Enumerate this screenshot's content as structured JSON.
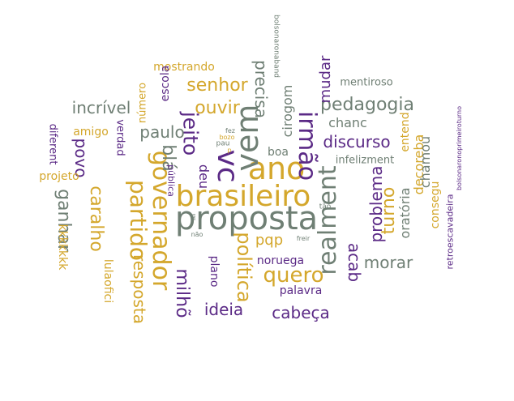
{
  "colors": {
    "gold": "#d4a72c",
    "purple": "#5b2a86",
    "gray": "#6f7f74"
  },
  "words": [
    {
      "text": "proposta",
      "c": "c3"
    },
    {
      "text": "brasileiro",
      "c": "c1"
    },
    {
      "text": "ano",
      "c": "c1"
    },
    {
      "text": "vem",
      "c": "c3"
    },
    {
      "text": "governador",
      "c": "c1"
    },
    {
      "text": "partido",
      "c": "c1"
    },
    {
      "text": "jeito",
      "c": "c2"
    },
    {
      "text": "vc",
      "c": "c2"
    },
    {
      "text": "irmão",
      "c": "c2"
    },
    {
      "text": "realment",
      "c": "c3"
    },
    {
      "text": "política",
      "c": "c1"
    },
    {
      "text": "quero",
      "c": "c1"
    },
    {
      "text": "pedagogia",
      "c": "c3"
    },
    {
      "text": "senhor",
      "c": "c1"
    },
    {
      "text": "ouvir",
      "c": "c1"
    },
    {
      "text": "precisa",
      "c": "c3"
    },
    {
      "text": "incrível",
      "c": "c3"
    },
    {
      "text": "paulo",
      "c": "c3"
    },
    {
      "text": "povo",
      "c": "c2"
    },
    {
      "text": "blá",
      "c": "c3"
    },
    {
      "text": "caralho",
      "c": "c1"
    },
    {
      "text": "ganhar",
      "c": "c3"
    },
    {
      "text": "resposta",
      "c": "c1"
    },
    {
      "text": "milhõ",
      "c": "c2"
    },
    {
      "text": "discurso",
      "c": "c2"
    },
    {
      "text": "problema",
      "c": "c2"
    },
    {
      "text": "turno",
      "c": "c1"
    },
    {
      "text": "acab",
      "c": "c2"
    },
    {
      "text": "morar",
      "c": "c3"
    },
    {
      "text": "ideia",
      "c": "c2"
    },
    {
      "text": "cabeça",
      "c": "c2"
    },
    {
      "text": "pqp",
      "c": "c1"
    },
    {
      "text": "mudar",
      "c": "c2"
    },
    {
      "text": "cirogom",
      "c": "c3"
    },
    {
      "text": "chanc",
      "c": "c3"
    },
    {
      "text": "mostrando",
      "c": "c1"
    },
    {
      "text": "escola",
      "c": "c2"
    },
    {
      "text": "número",
      "c": "c1"
    },
    {
      "text": "amigo",
      "c": "c1"
    },
    {
      "text": "verdad",
      "c": "c2"
    },
    {
      "text": "diferent",
      "c": "c2"
    },
    {
      "text": "projeto",
      "c": "c1"
    },
    {
      "text": "kkkkkkk",
      "c": "c1"
    },
    {
      "text": "lulaofici",
      "c": "c1"
    },
    {
      "text": "deu",
      "c": "c2"
    },
    {
      "text": "boa",
      "c": "c3"
    },
    {
      "text": "plano",
      "c": "c2"
    },
    {
      "text": "noruega",
      "c": "c2"
    },
    {
      "text": "palavra",
      "c": "c2"
    },
    {
      "text": "decoreba",
      "c": "c1"
    },
    {
      "text": "oratória",
      "c": "c3"
    },
    {
      "text": "chamou",
      "c": "c3"
    },
    {
      "text": "entend",
      "c": "c1"
    },
    {
      "text": "consegu",
      "c": "c1"
    },
    {
      "text": "mentiroso",
      "c": "c3"
    },
    {
      "text": "infelizment",
      "c": "c3"
    },
    {
      "text": "retroescavadeira",
      "c": "c2"
    },
    {
      "text": "bolsonaronoprimeiroturno",
      "c": "c2"
    },
    {
      "text": "bolsonaronaband",
      "c": "c3"
    },
    {
      "text": "pública",
      "c": "c2"
    },
    {
      "text": "fez",
      "c": "c3"
    },
    {
      "text": "bozo",
      "c": "c1"
    },
    {
      "text": "pau",
      "c": "c3"
    },
    {
      "text": "p",
      "c": "c1"
    },
    {
      "text": "não",
      "c": "c3"
    },
    {
      "text": "tão",
      "c": "c3"
    },
    {
      "text": "freir",
      "c": "c3"
    },
    {
      "text": "sei",
      "c": "c3"
    }
  ]
}
